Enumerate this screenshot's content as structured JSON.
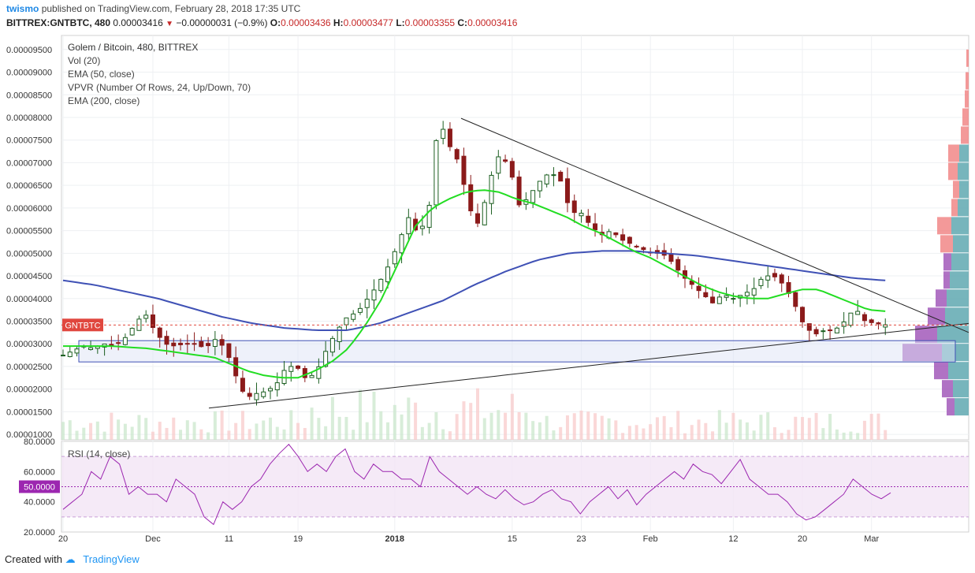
{
  "header": {
    "user": "twismo",
    "published_text": "published on TradingView.com, February 28, 2018 17:35 UTC",
    "symbol": "BITTREX:GNTBTC, 480",
    "last": "0.00003416",
    "change": "−0.00000031 (−0.9%)",
    "open_label": "O:",
    "open": "0.00003436",
    "high_label": "H:",
    "high": "0.00003477",
    "low_label": "L:",
    "low": "0.00003355",
    "close_label": "C:",
    "close": "0.00003416"
  },
  "legend": {
    "title": "Golem / Bitcoin, 480, BITTREX",
    "items": [
      "Vol (20)",
      "EMA (50, close)",
      "VPVR (Number Of Rows, 24, Up/Down, 70)",
      "EMA (200, close)"
    ]
  },
  "price_tag": {
    "label": "GNTBTC",
    "color": "#e0473e"
  },
  "rsi_panel": {
    "title": "RSI (14, close)",
    "tag": "50.0000",
    "tag_color": "#9c27b0"
  },
  "footer": {
    "created_with": "Created with",
    "brand": "TradingView"
  },
  "colors": {
    "up": "#1b5e20",
    "down": "#8b1a1a",
    "ema50": "#22dd22",
    "ema200": "#3f51b5",
    "rsi": "#9c27b0"
  },
  "chart_data": [
    {
      "type": "candlestick",
      "title": "Golem / Bitcoin, 480, BITTREX",
      "y_ticks": [
        "0.00001000",
        "0.00001500",
        "0.00002000",
        "0.00002500",
        "0.00003000",
        "0.00003500",
        "0.00004000",
        "0.00004500",
        "0.00005000",
        "0.00005500",
        "0.00006000",
        "0.00006500",
        "0.00007000",
        "0.00007500",
        "0.00008000",
        "0.00008500",
        "0.00009000",
        "0.00009500"
      ],
      "ylim": [
        8.8e-06,
        9.81e-05
      ],
      "x_ticks": [
        "20",
        "Dec",
        "11",
        "19",
        "2018",
        "15",
        "23",
        "Feb",
        "12",
        "20",
        "Mar"
      ],
      "x_tick_index": [
        0,
        13,
        24,
        34,
        48,
        65,
        75,
        85,
        97,
        107,
        117
      ],
      "close_path": [
        2.75,
        2.85,
        2.95,
        2.9,
        3.0,
        2.95,
        3.1,
        3.4,
        3.7,
        3.3,
        3.0,
        2.95,
        3.0,
        3.0,
        2.9,
        3.1,
        2.9,
        2.3,
        1.8,
        1.9,
        1.95,
        2.1,
        2.5,
        2.5,
        2.2,
        2.4,
        2.9,
        3.3,
        3.6,
        3.7,
        4.0,
        4.3,
        4.7,
        5.2,
        5.8,
        5.4,
        5.9,
        8.0,
        7.4,
        7.0,
        6.0,
        5.6,
        6.6,
        7.2,
        6.9,
        6.0,
        6.3,
        6.6,
        6.8,
        6.6,
        5.9,
        5.9,
        5.6,
        5.4,
        5.5,
        5.3,
        5.2,
        5.1,
        5.0,
        5.0,
        4.8,
        4.5,
        4.3,
        4.1,
        3.9,
        4.1,
        4.0,
        4.1,
        4.2,
        4.5,
        4.5,
        4.3,
        3.9,
        3.4,
        3.2,
        3.3,
        3.3,
        3.5,
        3.8,
        3.5,
        3.45,
        3.42
      ],
      "ema50_path": [
        2.95,
        2.95,
        2.95,
        2.95,
        2.92,
        2.9,
        2.85,
        2.8,
        2.75,
        2.7,
        2.55,
        2.4,
        2.3,
        2.25,
        2.25,
        2.4,
        2.6,
        2.9,
        3.4,
        4.0,
        4.8,
        5.6,
        6.0,
        6.2,
        6.35,
        6.4,
        6.35,
        6.2,
        6.1,
        5.95,
        5.8,
        5.6,
        5.45,
        5.25,
        5.05,
        4.9,
        4.7,
        4.5,
        4.3,
        4.15,
        4.05,
        4.0,
        4.0,
        4.1,
        4.2,
        4.2,
        4.05,
        3.9,
        3.75,
        3.72
      ],
      "ema200_path": [
        4.4,
        4.3,
        4.15,
        4.0,
        3.8,
        3.6,
        3.45,
        3.35,
        3.3,
        3.3,
        3.45,
        3.7,
        3.95,
        4.3,
        4.6,
        4.85,
        5.0,
        5.05,
        5.05,
        5.0,
        4.95,
        4.85,
        4.75,
        4.65,
        4.55,
        4.45,
        4.4
      ],
      "last_price": 3.416e-05,
      "support_zone": [
        2.6e-05,
        3.07e-05
      ],
      "trendlines": [
        "descending from 0.0000798 (Jan) to 0.0000325 (Mar)",
        "ascending from 0.0000158 (Dec) to 0.0000345 (Mar)"
      ],
      "grid": true
    },
    {
      "type": "line",
      "title": "RSI (14, close)",
      "y_ticks": [
        "20.0000",
        "40.0000",
        "60.0000",
        "80.0000"
      ],
      "ylim": [
        20,
        80
      ],
      "bands": [
        30,
        70
      ],
      "midline": 50,
      "values": [
        35,
        40,
        45,
        60,
        55,
        70,
        65,
        45,
        50,
        45,
        45,
        40,
        55,
        50,
        45,
        30,
        25,
        40,
        35,
        40,
        50,
        55,
        65,
        72,
        78,
        70,
        60,
        65,
        60,
        70,
        75,
        60,
        55,
        65,
        60,
        60,
        55,
        55,
        50,
        70,
        60,
        55,
        50,
        45,
        50,
        45,
        42,
        48,
        42,
        38,
        40,
        45,
        48,
        42,
        40,
        32,
        40,
        45,
        50,
        42,
        48,
        38,
        45,
        50,
        55,
        60,
        55,
        65,
        60,
        58,
        52,
        60,
        68,
        55,
        50,
        45,
        45,
        40,
        32,
        28,
        30,
        35,
        40,
        45,
        55,
        50,
        45,
        42,
        46
      ]
    }
  ]
}
